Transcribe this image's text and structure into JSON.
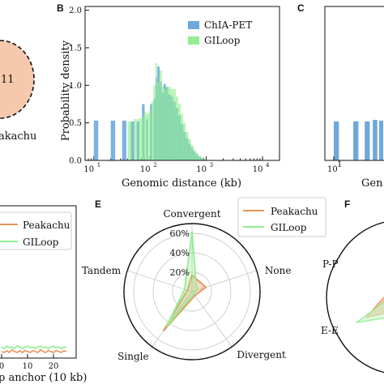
{
  "panels": {
    "a": {
      "partial_number": "11",
      "partial_label": "akachu",
      "fill_color": "#f6c9ac"
    },
    "b": {
      "letter": "B"
    },
    "c": {
      "letter": "C",
      "partial_xlabel": "Gen",
      "partial_tick": "10"
    },
    "d": {
      "partial_xlabel": "p anchor (10 kb)",
      "legend": [
        "Peakachu",
        "GILoop"
      ]
    },
    "e": {
      "letter": "E"
    },
    "f": {
      "letter": "F",
      "labels": [
        "P-P",
        "E-E"
      ]
    }
  },
  "chart_data": [
    {
      "id": "B",
      "type": "bar",
      "xlabel": "Genomic distance (kb)",
      "ylabel": "Probability density",
      "x_scale": "log",
      "xlim": [
        7,
        20000
      ],
      "ylim": [
        0,
        2.05
      ],
      "x_ticks": [
        10,
        100,
        1000,
        10000
      ],
      "x_tick_labels": [
        "10",
        "10",
        "10",
        "10"
      ],
      "x_tick_exponents": [
        "1",
        "2",
        "3",
        "4"
      ],
      "y_ticks": [
        0.0,
        0.5,
        1.0,
        1.5,
        2.0
      ],
      "y_tick_labels": [
        "0.0",
        "0.5",
        "1.0",
        "1.5",
        "2.0"
      ],
      "legend_position": "top-right",
      "series": [
        {
          "name": "ChIA-PET",
          "color": "#6fa8dc",
          "bins": [
            {
              "x0": 10,
              "x1": 12,
              "y": 0.53
            },
            {
              "x0": 20,
              "x1": 24,
              "y": 0.53
            },
            {
              "x0": 32,
              "x1": 38,
              "y": 0.53
            },
            {
              "x0": 45,
              "x1": 52,
              "y": 0.52
            },
            {
              "x0": 58,
              "x1": 65,
              "y": 0.52
            },
            {
              "x0": 72,
              "x1": 80,
              "y": 0.75
            },
            {
              "x0": 85,
              "x1": 92,
              "y": 0.55
            },
            {
              "x0": 100,
              "x1": 110,
              "y": 0.75
            },
            {
              "x0": 115,
              "x1": 125,
              "y": 0.82
            },
            {
              "x0": 125,
              "x1": 135,
              "y": 1.1
            },
            {
              "x0": 135,
              "x1": 148,
              "y": 1.25
            },
            {
              "x0": 148,
              "x1": 162,
              "y": 1.05
            },
            {
              "x0": 162,
              "x1": 175,
              "y": 0.9
            },
            {
              "x0": 175,
              "x1": 190,
              "y": 1.02
            },
            {
              "x0": 190,
              "x1": 210,
              "y": 0.98
            },
            {
              "x0": 210,
              "x1": 232,
              "y": 0.88
            },
            {
              "x0": 232,
              "x1": 258,
              "y": 0.85
            },
            {
              "x0": 258,
              "x1": 285,
              "y": 0.78
            },
            {
              "x0": 285,
              "x1": 315,
              "y": 0.7
            },
            {
              "x0": 315,
              "x1": 350,
              "y": 0.6
            },
            {
              "x0": 350,
              "x1": 390,
              "y": 0.48
            },
            {
              "x0": 390,
              "x1": 430,
              "y": 0.38
            },
            {
              "x0": 430,
              "x1": 480,
              "y": 0.3
            },
            {
              "x0": 480,
              "x1": 530,
              "y": 0.22
            },
            {
              "x0": 530,
              "x1": 590,
              "y": 0.17
            },
            {
              "x0": 590,
              "x1": 650,
              "y": 0.12
            },
            {
              "x0": 650,
              "x1": 720,
              "y": 0.08
            },
            {
              "x0": 720,
              "x1": 800,
              "y": 0.05
            },
            {
              "x0": 800,
              "x1": 880,
              "y": 0.03
            }
          ]
        },
        {
          "name": "GILoop",
          "color": "#90ee90",
          "bins": [
            {
              "x0": 40,
              "x1": 48,
              "y": 0.52
            },
            {
              "x0": 52,
              "x1": 60,
              "y": 0.55
            },
            {
              "x0": 62,
              "x1": 70,
              "y": 0.56
            },
            {
              "x0": 70,
              "x1": 78,
              "y": 0.58
            },
            {
              "x0": 78,
              "x1": 86,
              "y": 0.65
            },
            {
              "x0": 86,
              "x1": 95,
              "y": 0.62
            },
            {
              "x0": 95,
              "x1": 105,
              "y": 0.66
            },
            {
              "x0": 105,
              "x1": 115,
              "y": 0.78
            },
            {
              "x0": 115,
              "x1": 125,
              "y": 1.0
            },
            {
              "x0": 125,
              "x1": 135,
              "y": 1.3
            },
            {
              "x0": 135,
              "x1": 148,
              "y": 1.05
            },
            {
              "x0": 148,
              "x1": 162,
              "y": 1.2
            },
            {
              "x0": 162,
              "x1": 175,
              "y": 1.0
            },
            {
              "x0": 175,
              "x1": 190,
              "y": 0.95
            },
            {
              "x0": 190,
              "x1": 210,
              "y": 0.98
            },
            {
              "x0": 210,
              "x1": 232,
              "y": 0.98
            },
            {
              "x0": 232,
              "x1": 258,
              "y": 0.95
            },
            {
              "x0": 258,
              "x1": 285,
              "y": 0.95
            },
            {
              "x0": 285,
              "x1": 315,
              "y": 0.85
            },
            {
              "x0": 315,
              "x1": 350,
              "y": 0.75
            },
            {
              "x0": 350,
              "x1": 390,
              "y": 0.62
            },
            {
              "x0": 390,
              "x1": 430,
              "y": 0.5
            },
            {
              "x0": 430,
              "x1": 480,
              "y": 0.38
            },
            {
              "x0": 480,
              "x1": 530,
              "y": 0.28
            },
            {
              "x0": 530,
              "x1": 590,
              "y": 0.2
            },
            {
              "x0": 590,
              "x1": 650,
              "y": 0.14
            },
            {
              "x0": 650,
              "x1": 720,
              "y": 0.1
            },
            {
              "x0": 720,
              "x1": 800,
              "y": 0.06
            },
            {
              "x0": 800,
              "x1": 880,
              "y": 0.04
            },
            {
              "x0": 880,
              "x1": 1000,
              "y": 0.02
            }
          ]
        }
      ]
    },
    {
      "id": "E",
      "type": "radar",
      "categories": [
        "Convergent",
        "None",
        "Divergent",
        "Single",
        "Tandem"
      ],
      "rmax": 0.7,
      "ring_ticks": [
        0.2,
        0.4,
        0.6
      ],
      "ring_tick_labels": [
        "20%",
        "40%",
        "60%"
      ],
      "legend_position": "top-right",
      "series": [
        {
          "name": "Peakachu",
          "color": "#e8935a",
          "values": [
            0.17,
            0.15,
            0.05,
            0.5,
            0.05
          ]
        },
        {
          "name": "GILoop",
          "color": "#90ee90",
          "values": [
            0.62,
            0.05,
            0.03,
            0.45,
            0.08
          ]
        }
      ]
    },
    {
      "id": "D",
      "type": "line",
      "x_ticks": [
        0,
        10,
        20
      ],
      "legend_position": "top-right",
      "series": [
        {
          "name": "Peakachu",
          "color": "#e8935a",
          "x": [
            0,
            1,
            2,
            3,
            4,
            5,
            6,
            7,
            8,
            9,
            10,
            11,
            12,
            13,
            14,
            15,
            16,
            17,
            18,
            19,
            20,
            21,
            22,
            23,
            24,
            25
          ],
          "values": [
            0.035,
            0.03,
            0.04,
            0.03,
            0.045,
            0.035,
            0.03,
            0.04,
            0.03,
            0.04,
            0.035,
            0.03,
            0.04,
            0.035,
            0.03,
            0.045,
            0.035,
            0.03,
            0.04,
            0.035,
            0.03,
            0.04,
            0.035,
            0.03,
            0.04,
            0.035
          ]
        },
        {
          "name": "GILoop",
          "color": "#90ee90",
          "x": [
            0,
            1,
            2,
            3,
            4,
            5,
            6,
            7,
            8,
            9,
            10,
            11,
            12,
            13,
            14,
            15,
            16,
            17,
            18,
            19,
            20,
            21,
            22,
            23,
            24,
            25
          ],
          "values": [
            0.06,
            0.05,
            0.065,
            0.055,
            0.06,
            0.05,
            0.065,
            0.06,
            0.05,
            0.06,
            0.065,
            0.055,
            0.06,
            0.05,
            0.06,
            0.065,
            0.055,
            0.06,
            0.05,
            0.06,
            0.065,
            0.055,
            0.06,
            0.05,
            0.06,
            0.055
          ]
        }
      ]
    },
    {
      "id": "C",
      "type": "bar",
      "x_scale": "log",
      "series": [
        {
          "name": "ChIA-PET",
          "color": "#6fa8dc",
          "bins": [
            {
              "x0": 10,
              "x1": 12,
              "y": 0.52
            },
            {
              "x0": 20,
              "x1": 24,
              "y": 0.52
            },
            {
              "x0": 30,
              "x1": 36,
              "y": 0.52
            },
            {
              "x0": 40,
              "x1": 47,
              "y": 0.54
            },
            {
              "x0": 50,
              "x1": 58,
              "y": 0.53
            },
            {
              "x0": 60,
              "x1": 70,
              "y": 0.55
            }
          ]
        }
      ]
    }
  ]
}
